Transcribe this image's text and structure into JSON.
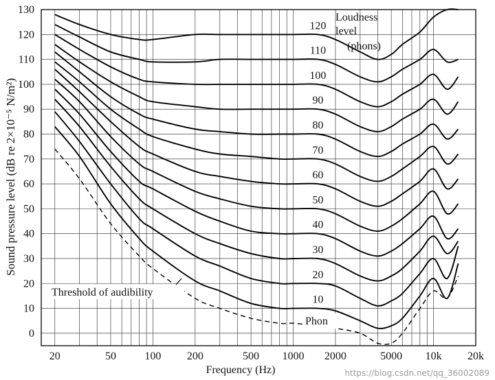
{
  "chart_data": {
    "type": "line",
    "title": "",
    "xlabel": "Frequency (Hz)",
    "ylabel": "Sound pressure level (dB re 2×10⁻⁵ N/m²)",
    "x_scale": "log",
    "xlim": [
      16,
      20000
    ],
    "ylim": [
      -5,
      130
    ],
    "grid": true,
    "x_ticks": [
      {
        "value": 20,
        "label": "20"
      },
      {
        "value": 50,
        "label": "50"
      },
      {
        "value": 100,
        "label": "100"
      },
      {
        "value": 200,
        "label": "200"
      },
      {
        "value": 500,
        "label": "500"
      },
      {
        "value": 1000,
        "label": "1000"
      },
      {
        "value": 2000,
        "label": "2000"
      },
      {
        "value": 5000,
        "label": "5000"
      },
      {
        "value": 10000,
        "label": "10k"
      },
      {
        "value": 20000,
        "label": "20k"
      }
    ],
    "y_ticks": [
      0,
      10,
      20,
      30,
      40,
      50,
      60,
      70,
      80,
      90,
      100,
      110,
      120,
      130
    ],
    "legend_title": [
      "Loudness",
      "level",
      "(phons)"
    ],
    "annotations": {
      "threshold": "Threshold of audibility",
      "phon": "Phon"
    },
    "x": [
      20,
      30,
      50,
      80,
      100,
      200,
      300,
      500,
      800,
      1000,
      1500,
      2000,
      3000,
      4000,
      5000,
      6000,
      8000,
      10000,
      12500,
      15000
    ],
    "series": [
      {
        "name": "Threshold of audibility",
        "dashed": true,
        "values": [
          74,
          62,
          44,
          31,
          26,
          14,
          10,
          6,
          4,
          4,
          3,
          2,
          0,
          -4,
          -4,
          0,
          10,
          17,
          14,
          23
        ]
      },
      {
        "name": "10",
        "values": [
          83,
          71,
          52,
          38,
          33,
          21,
          17,
          12,
          10,
          10,
          10,
          9,
          5,
          2,
          3,
          6,
          15,
          22,
          14,
          28
        ]
      },
      {
        "name": "20",
        "values": [
          89,
          77,
          60,
          46,
          42,
          31,
          27,
          22,
          20,
          20,
          20,
          19,
          14,
          11,
          13,
          16,
          24,
          30,
          22,
          35
        ]
      },
      {
        "name": "30",
        "values": [
          94,
          83,
          67,
          54,
          50,
          40,
          36,
          32,
          30,
          30,
          30,
          28,
          23,
          21,
          23,
          26,
          33,
          39,
          32,
          37
        ]
      },
      {
        "name": "40",
        "values": [
          98,
          88,
          73,
          61,
          58,
          49,
          45,
          41,
          40,
          40,
          40,
          38,
          33,
          31,
          33,
          36,
          42,
          47,
          38,
          42
        ]
      },
      {
        "name": "50",
        "values": [
          102,
          93,
          79,
          68,
          65,
          57,
          54,
          51,
          50,
          50,
          50,
          48,
          43,
          41,
          43,
          46,
          52,
          57,
          48,
          52
        ]
      },
      {
        "name": "60",
        "values": [
          106,
          97,
          85,
          75,
          72,
          65,
          63,
          61,
          60,
          60,
          60,
          58,
          53,
          51,
          53,
          56,
          61,
          66,
          58,
          62
        ]
      },
      {
        "name": "70",
        "values": [
          109,
          101,
          90,
          82,
          79,
          74,
          72,
          71,
          70,
          70,
          70,
          68,
          63,
          61,
          63,
          66,
          71,
          75,
          68,
          72
        ]
      },
      {
        "name": "80",
        "values": [
          113,
          105,
          95,
          88,
          86,
          82,
          81,
          80,
          80,
          80,
          80,
          78,
          73,
          71,
          73,
          76,
          80,
          84,
          78,
          82
        ]
      },
      {
        "name": "90",
        "values": [
          116,
          109,
          101,
          95,
          93,
          91,
          90,
          90,
          90,
          90,
          90,
          88,
          83,
          81,
          83,
          86,
          90,
          94,
          88,
          93
        ]
      },
      {
        "name": "100",
        "values": [
          120,
          114,
          107,
          102,
          101,
          100,
          100,
          100,
          100,
          100,
          100,
          98,
          93,
          91,
          93,
          96,
          100,
          104,
          98,
          103
        ]
      },
      {
        "name": "110",
        "values": [
          124,
          119,
          113,
          110,
          109,
          109,
          110,
          110,
          110,
          110,
          110,
          108,
          103,
          101,
          103,
          106,
          110,
          114,
          109,
          110
        ]
      },
      {
        "name": "120",
        "values": [
          128,
          124,
          120,
          118,
          118,
          120,
          120,
          120,
          120,
          120,
          120,
          118,
          113,
          110,
          112,
          116,
          121,
          127,
          130,
          130
        ]
      }
    ]
  },
  "watermark": "https://blog.csdn.net/qq_36002089"
}
